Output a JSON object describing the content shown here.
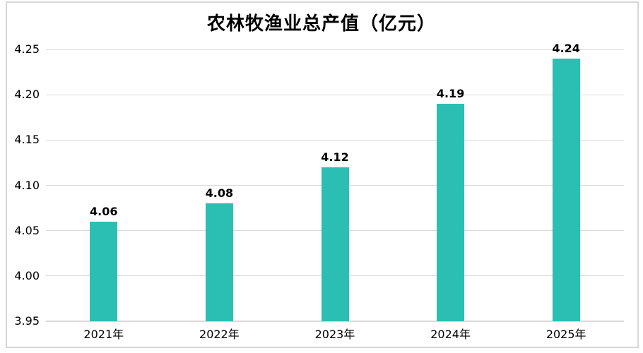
{
  "chart_data": {
    "type": "bar",
    "title": "农林牧渔业总产值（亿元）",
    "categories": [
      "2021年",
      "2022年",
      "2023年",
      "2024年",
      "2025年"
    ],
    "values": [
      4.06,
      4.08,
      4.12,
      4.19,
      4.24
    ],
    "value_labels": [
      "4.06",
      "4.08",
      "4.12",
      "4.19",
      "4.24"
    ],
    "yticks": [
      3.95,
      4.0,
      4.05,
      4.1,
      4.15,
      4.2,
      4.25
    ],
    "ytick_labels": [
      "3.95",
      "4.00",
      "4.05",
      "4.10",
      "4.15",
      "4.20",
      "4.25"
    ],
    "ylim": [
      3.95,
      4.25
    ],
    "xlabel": "",
    "ylabel": "",
    "grid": true,
    "legend": "none",
    "colors": {
      "bar": "#2bbfb4",
      "gridline": "#d9d9d9",
      "axis_line": "#d9d9d9",
      "frame_border": "#d7d7d7",
      "text": "#000000",
      "background": "#ffffff"
    }
  }
}
